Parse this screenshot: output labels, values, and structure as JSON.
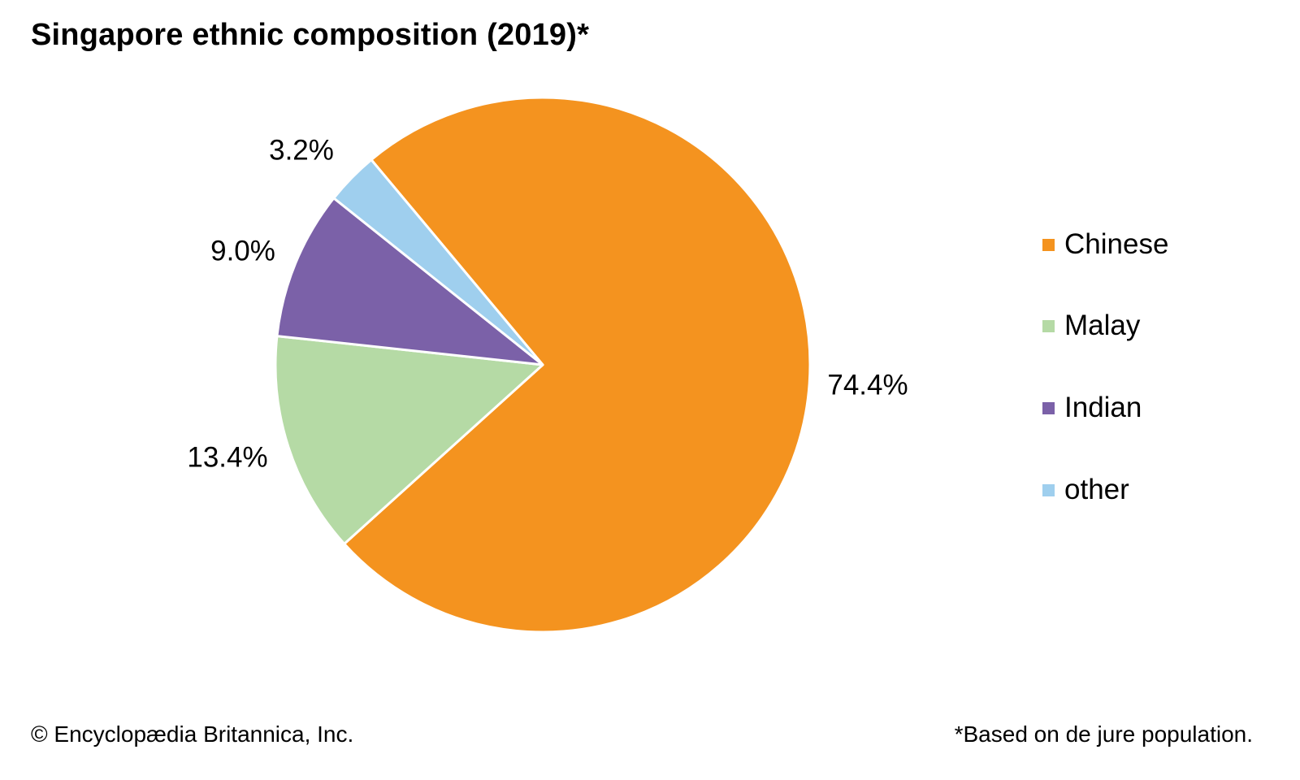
{
  "chart_data": {
    "type": "pie",
    "title": "Singapore ethnic composition (2019)*",
    "slices": [
      {
        "label": "Chinese",
        "value": 74.4,
        "value_label": "74.4%",
        "color": "#F4931F"
      },
      {
        "label": "Malay",
        "value": 13.4,
        "value_label": "13.4%",
        "color": "#B5DAA5"
      },
      {
        "label": "Indian",
        "value": 9.0,
        "value_label": "9.0%",
        "color": "#7B61A8"
      },
      {
        "label": "other",
        "value": 3.2,
        "value_label": "3.2%",
        "color": "#9FCFEE"
      }
    ],
    "start_angle_deg": -39.9,
    "direction": "clockwise",
    "legend_position": "right"
  },
  "footer": {
    "copyright": "© Encyclopædia Britannica, Inc.",
    "footnote": "*Based on de jure population."
  }
}
